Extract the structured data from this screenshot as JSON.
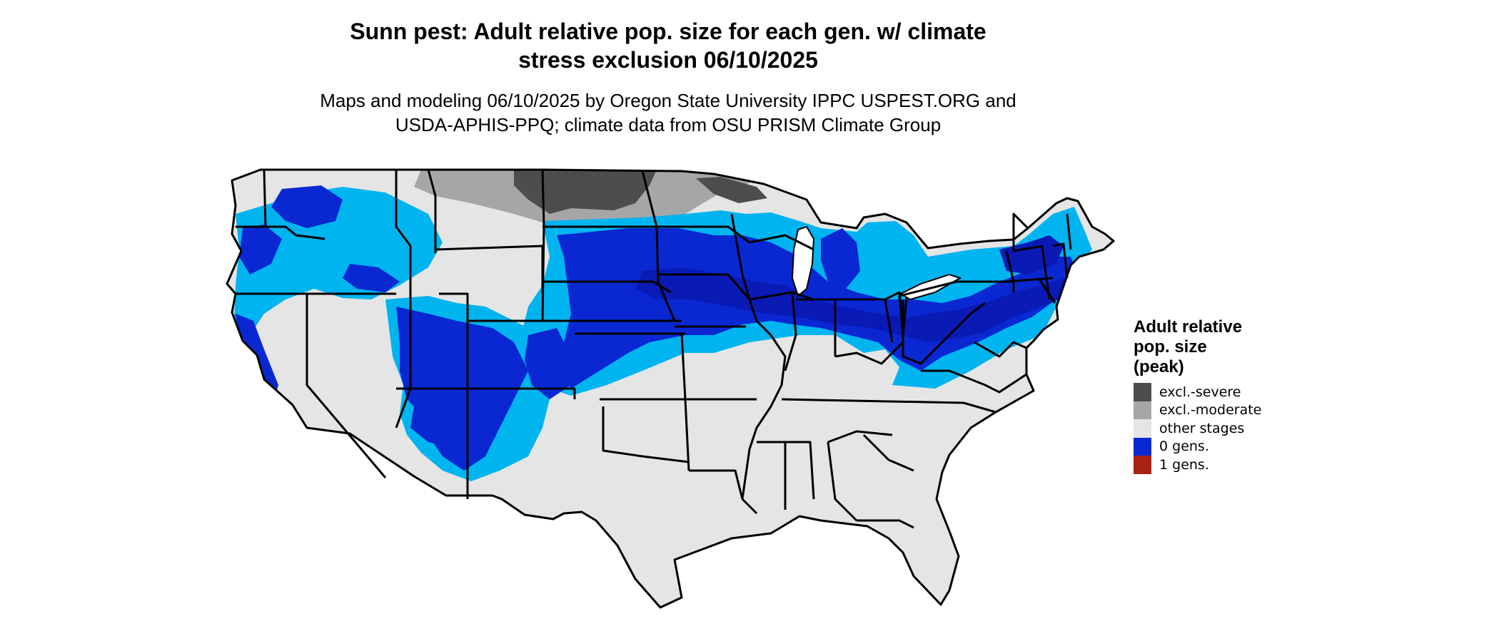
{
  "title": {
    "line1": "Sunn pest: Adult relative pop. size for each gen. w/ climate",
    "line2": "stress exclusion 06/10/2025"
  },
  "subtitle": {
    "line1": "Maps and modeling 06/10/2025 by Oregon State University IPPC USPEST.ORG and",
    "line2": "USDA-APHIS-PPQ; climate data from OSU PRISM Climate Group"
  },
  "legend": {
    "title_lines": [
      "Adult relative",
      "pop. size",
      "(peak)"
    ],
    "items": [
      {
        "label": "excl.-severe",
        "color": "#4d4d4d"
      },
      {
        "label": "excl.-moderate",
        "color": "#a6a6a6"
      },
      {
        "label": "other stages",
        "color": "#e5e5e5"
      },
      {
        "label": "0 gens.",
        "color": "#0a28d2"
      },
      {
        "label": "1 gens.",
        "color": "#a82315"
      }
    ]
  },
  "map_colors": {
    "background": "#e5e5e5",
    "border": "#000000",
    "light_blue": "#00b4f0",
    "blue": "#0a28d2",
    "dark_blue": "#0a1ab4",
    "excl_severe": "#4d4d4d",
    "excl_moderate": "#a6a6a6"
  }
}
